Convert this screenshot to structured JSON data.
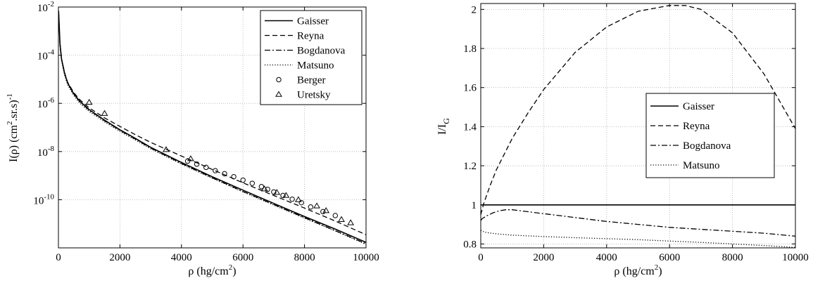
{
  "chart_data": [
    {
      "type": "line",
      "xlabel_main": "ρ (hg/cm",
      "xlabel_sup": "2",
      "xlabel_end": ")",
      "ylabel_parts": [
        "I(ρ) (cm",
        "2",
        ".sr.s)",
        "-1"
      ],
      "xlim": [
        0,
        10000
      ],
      "ylim_log10": [
        -12,
        -2
      ],
      "yscale": "log",
      "grid": true,
      "legend_position": "top-right",
      "x_ticks": [
        0,
        2000,
        4000,
        6000,
        8000,
        10000
      ],
      "x_tick_labels": [
        "0",
        "2000",
        "4000",
        "6000",
        "8000",
        "10000"
      ],
      "y_ticks": [
        {
          "base": "10",
          "exp": "-10",
          "log10": -10
        },
        {
          "base": "10",
          "exp": "-8",
          "log10": -8
        },
        {
          "base": "10",
          "exp": "-6",
          "log10": -6
        },
        {
          "base": "10",
          "exp": "-4",
          "log10": -4
        },
        {
          "base": "10",
          "exp": "-2",
          "log10": -2
        }
      ],
      "series": [
        {
          "name": "Gaisser",
          "style": "solid",
          "x": [
            5,
            50,
            100,
            200,
            300,
            500,
            700,
            1000,
            1500,
            2000,
            2500,
            3000,
            4000,
            5000,
            6000,
            7000,
            8000,
            9000,
            10000
          ],
          "y": [
            0.007,
            0.0003,
            7e-05,
            1.8e-05,
            7e-06,
            2.5e-06,
            1.2e-06,
            5.5e-07,
            2e-07,
            8e-08,
            3.5e-08,
            1.5e-08,
            3.5e-09,
            9e-10,
            2.5e-10,
            7e-11,
            2e-11,
            6e-12,
            1.7e-12
          ]
        },
        {
          "name": "Reyna",
          "style": "dashed",
          "x": [
            5,
            50,
            100,
            200,
            300,
            500,
            700,
            1000,
            1500,
            2000,
            2500,
            3000,
            4000,
            5000,
            6000,
            7000,
            8000,
            9000,
            10000
          ],
          "y": [
            0.007,
            0.0003,
            7e-05,
            1.9e-05,
            7.5e-06,
            2.8e-06,
            1.4e-06,
            6.5e-07,
            2.5e-07,
            1.1e-07,
            5e-08,
            2.4e-08,
            6.5e-09,
            1.8e-09,
            5e-10,
            1.5e-10,
            4.5e-11,
            1.3e-11,
            3.5e-12
          ]
        },
        {
          "name": "Bogdanova",
          "style": "dashdot",
          "x": [
            5,
            50,
            100,
            200,
            300,
            500,
            700,
            1000,
            1500,
            2000,
            2500,
            3000,
            4000,
            5000,
            6000,
            7000,
            8000,
            9000,
            10000
          ],
          "y": [
            0.0065,
            0.00029,
            6.8e-05,
            1.75e-05,
            6.9e-06,
            2.4e-06,
            1.15e-06,
            5.2e-07,
            1.9e-07,
            7.6e-08,
            3.3e-08,
            1.4e-08,
            3.2e-09,
            8.2e-10,
            2.2e-10,
            6.3e-11,
            1.8e-11,
            5.2e-12,
            1.5e-12
          ]
        },
        {
          "name": "Matsuno",
          "style": "dotted",
          "x": [
            5,
            50,
            100,
            200,
            300,
            500,
            700,
            1000,
            1500,
            2000,
            2500,
            3000,
            4000,
            5000,
            6000,
            7000,
            8000,
            9000,
            10000
          ],
          "y": [
            0.006,
            0.00026,
            6e-05,
            1.5e-05,
            6e-06,
            2.1e-06,
            1e-06,
            4.6e-07,
            1.7e-07,
            6.8e-08,
            3e-08,
            1.3e-08,
            3e-09,
            7.8e-10,
            2.1e-10,
            6e-11,
            1.7e-11,
            5e-12,
            1.4e-12
          ]
        },
        {
          "name": "Berger",
          "style": "circle",
          "x": [
            4200,
            4500,
            4800,
            5100,
            5400,
            5700,
            6000,
            6300,
            6600,
            6800,
            7000,
            7300,
            7600,
            7900,
            8200,
            8600,
            9000
          ],
          "y": [
            4e-09,
            3e-09,
            2.2e-09,
            1.6e-09,
            1.2e-09,
            9e-10,
            6.5e-10,
            4.8e-10,
            3.5e-10,
            2.7e-10,
            2.1e-10,
            1.5e-10,
            1.05e-10,
            7.5e-11,
            5e-11,
            3.2e-11,
            2.2e-11
          ]
        },
        {
          "name": "Uretsky",
          "style": "triangle",
          "x": [
            1000,
            1500,
            3500,
            4300,
            6700,
            7100,
            7400,
            7800,
            8400,
            8700,
            9200,
            9500
          ],
          "y": [
            1.1e-06,
            3.8e-07,
            1.2e-08,
            5e-09,
            2.8e-10,
            2e-10,
            1.5e-10,
            1e-10,
            5.5e-11,
            3.5e-11,
            1.5e-11,
            1.1e-11
          ]
        }
      ]
    },
    {
      "type": "line",
      "xlabel_main": "ρ (hg/cm",
      "xlabel_sup": "2",
      "xlabel_end": ")",
      "ylabel_main": "I/I",
      "ylabel_sub": "G",
      "xlim": [
        0,
        10000
      ],
      "ylim": [
        0.78,
        2.03
      ],
      "grid": true,
      "legend_position": "center-right",
      "x_ticks": [
        0,
        2000,
        4000,
        6000,
        8000,
        10000
      ],
      "x_tick_labels": [
        "0",
        "2000",
        "4000",
        "6000",
        "8000",
        "10000"
      ],
      "y_ticks": [
        0.8,
        1,
        1.2,
        1.4,
        1.6,
        1.8,
        2
      ],
      "y_tick_labels": [
        "0.8",
        "1",
        "1.2",
        "1.4",
        "1.6",
        "1.8",
        "2"
      ],
      "series": [
        {
          "name": "Gaisser",
          "style": "solid",
          "x": [
            0,
            10000
          ],
          "y": [
            1,
            1
          ]
        },
        {
          "name": "Reyna",
          "style": "dashed",
          "x": [
            0,
            100,
            300,
            500,
            1000,
            1500,
            2000,
            3000,
            4000,
            5000,
            6000,
            6500,
            7000,
            8000,
            9000,
            10000
          ],
          "y": [
            0.95,
            1.01,
            1.1,
            1.18,
            1.34,
            1.47,
            1.59,
            1.78,
            1.91,
            1.99,
            2.02,
            2.02,
            2.0,
            1.88,
            1.67,
            1.39
          ]
        },
        {
          "name": "Bogdanova",
          "style": "dashdot",
          "x": [
            0,
            50,
            100,
            200,
            400,
            600,
            800,
            1000,
            1500,
            2000,
            3000,
            4000,
            5000,
            6000,
            7000,
            8000,
            9000,
            10000
          ],
          "y": [
            0.92,
            0.93,
            0.935,
            0.945,
            0.96,
            0.97,
            0.975,
            0.975,
            0.965,
            0.955,
            0.935,
            0.915,
            0.9,
            0.885,
            0.875,
            0.865,
            0.855,
            0.84
          ]
        },
        {
          "name": "Matsuno",
          "style": "dotted",
          "x": [
            0,
            50,
            100,
            200,
            500,
            1000,
            2000,
            3000,
            4000,
            5000,
            6000,
            7000,
            8000,
            9000,
            10000
          ],
          "y": [
            0.87,
            0.866,
            0.862,
            0.858,
            0.852,
            0.845,
            0.838,
            0.832,
            0.827,
            0.822,
            0.815,
            0.808,
            0.8,
            0.792,
            0.782
          ]
        }
      ]
    }
  ]
}
